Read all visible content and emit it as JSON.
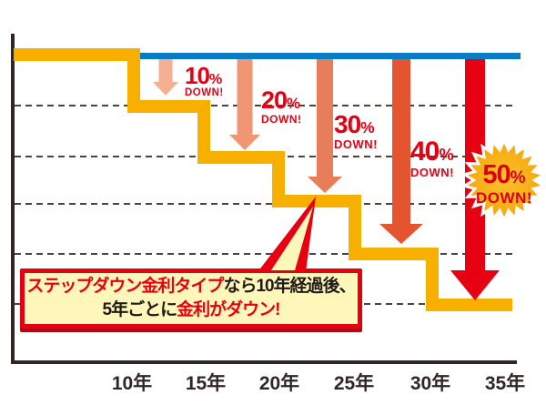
{
  "chart_data": {
    "type": "line",
    "title": "",
    "xlabel": "",
    "ylabel": "",
    "x_ticks": [
      "10年",
      "15年",
      "20年",
      "25年",
      "30年",
      "35年"
    ],
    "grid": "dashed horizontal",
    "legend": "none",
    "series": [
      {
        "name": "reference-flat-rate-line",
        "color": "#0a7cc4",
        "shape": "horizontal line from 10年 to 35年 at initial rate level",
        "relative_level_percent": 100
      },
      {
        "name": "step-down-rate-line",
        "color": "#f7af00",
        "shape": "step",
        "steps_relative_level_percent": [
          {
            "from_year": 0,
            "to_year": 10,
            "level": 100
          },
          {
            "from_year": 10,
            "to_year": 15,
            "level": 90
          },
          {
            "from_year": 15,
            "to_year": 20,
            "level": 80
          },
          {
            "from_year": 20,
            "to_year": 25,
            "level": 70
          },
          {
            "from_year": 25,
            "to_year": 30,
            "level": 60
          },
          {
            "from_year": 30,
            "to_year": 35,
            "level": 50
          }
        ]
      }
    ],
    "down_steps_percent": [
      10,
      20,
      30,
      40,
      50
    ]
  },
  "annotations": {
    "down_labels": [
      {
        "value": "10",
        "percent": "%",
        "down": "DOWN!"
      },
      {
        "value": "20",
        "percent": "%",
        "down": "DOWN!"
      },
      {
        "value": "30",
        "percent": "%",
        "down": "DOWN!"
      },
      {
        "value": "40",
        "percent": "%",
        "down": "DOWN!"
      }
    ],
    "badge": {
      "value": "50",
      "percent": "%",
      "down": "DOWN!"
    },
    "callout": {
      "line1_highlight": "ステップダウン金利タイプ",
      "line1_rest": "なら10年経過後、",
      "line2_lead": "5年ごとに",
      "line2_highlight": "金利がダウン!"
    }
  },
  "colors": {
    "reference_line": "#0a7cc4",
    "step_line": "#f7af00",
    "accent_red": "#e60012",
    "arrows": [
      "#f5af91",
      "#f09673",
      "#e87d5a",
      "#e4552f",
      "#e60012"
    ],
    "badge_inner": "#fcc22d",
    "badge_outer": "#f09600",
    "badge_outline": "#ffffff",
    "callout_fill": "#fff7b9",
    "callout_border": "#e60012",
    "callout_shadow": "#9c121b",
    "axis": "#2e2725",
    "gridline": "#4e423d"
  }
}
